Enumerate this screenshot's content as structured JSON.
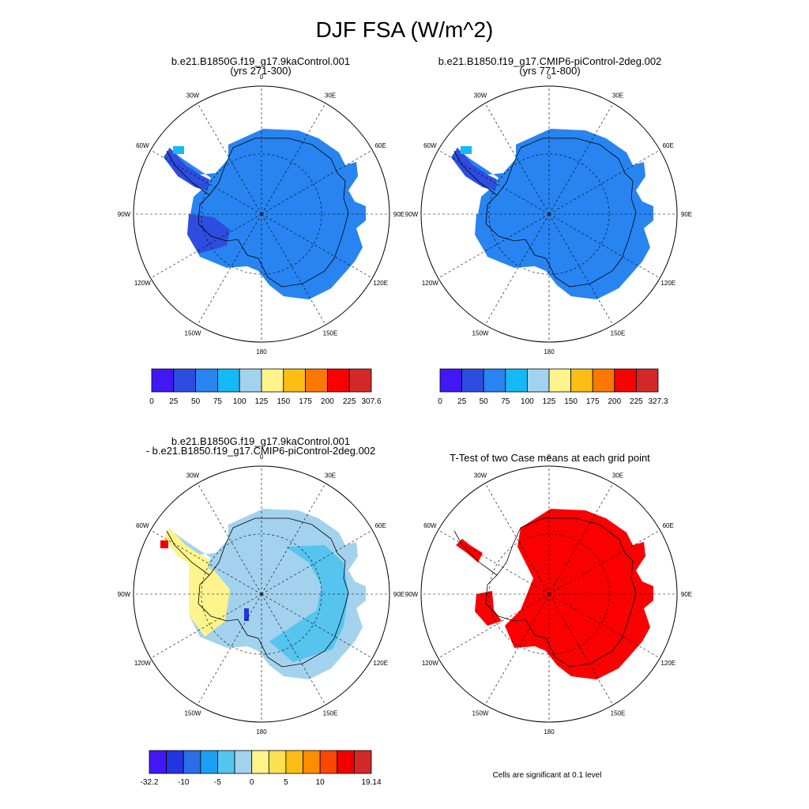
{
  "title": "DJF FSA (W/m^2)",
  "panels": [
    {
      "id": "p1",
      "title_line1": "b.e21.B1850G.f19_g17.9kaControl.001",
      "title_line2": "(yrs 271-300)"
    },
    {
      "id": "p2",
      "title_line1": "b.e21.B1850.f19_g17.CMIP6-piControl-2deg.002",
      "title_line2": "(yrs 771-800)"
    },
    {
      "id": "p3",
      "title_line1": "b.e21.B1850G.f19_g17.9kaControl.001",
      "title_line2": "- b.e21.B1850.f19_g17.CMIP6-piControl-2deg.002"
    },
    {
      "id": "p4",
      "title_line1": "T-Test of two Case means at each grid point",
      "title_line2": ""
    }
  ],
  "longitude_labels": [
    "0",
    "30E",
    "60E",
    "90E",
    "120E",
    "150E",
    "180",
    "150W",
    "120W",
    "90W",
    "60W",
    "30W"
  ],
  "colorbars": {
    "abs1": {
      "colors": [
        "#4316f5",
        "#2e4de0",
        "#2884f0",
        "#14b9f5",
        "#a3d2ee",
        "#fff48c",
        "#fdbd14",
        "#fc7800",
        "#fa0000",
        "#d22828"
      ],
      "labels": [
        "0",
        "25",
        "50",
        "75",
        "100",
        "125",
        "150",
        "175",
        "200",
        "225",
        "307.6"
      ]
    },
    "abs2": {
      "colors": [
        "#4316f5",
        "#2e4de0",
        "#2884f0",
        "#14b9f5",
        "#a3d2ee",
        "#fff48c",
        "#fdbd14",
        "#fc7800",
        "#fa0000",
        "#d22828"
      ],
      "labels": [
        "0",
        "25",
        "50",
        "75",
        "100",
        "125",
        "150",
        "175",
        "200",
        "225",
        "327.3"
      ]
    },
    "diff": {
      "colors": [
        "#4316f5",
        "#2235e0",
        "#2a6ee8",
        "#1aa0f2",
        "#55c4ee",
        "#a3d2ee",
        "#fff48c",
        "#fde050",
        "#fdbd14",
        "#fc8c00",
        "#fa4600",
        "#f00000",
        "#d22828"
      ],
      "labels": [
        "-32.2",
        "-10",
        "-5",
        "0",
        "5",
        "10",
        "19.14"
      ]
    }
  },
  "significance_note": "Cells are significant at 0.1 level",
  "colors": {
    "abs_main": "#2884f0",
    "abs_low": "#2e4de0",
    "diff_light": "#a3d2ee",
    "diff_mid": "#55c4ee",
    "diff_pos": "#fff48c",
    "significant": "#fa0000"
  }
}
